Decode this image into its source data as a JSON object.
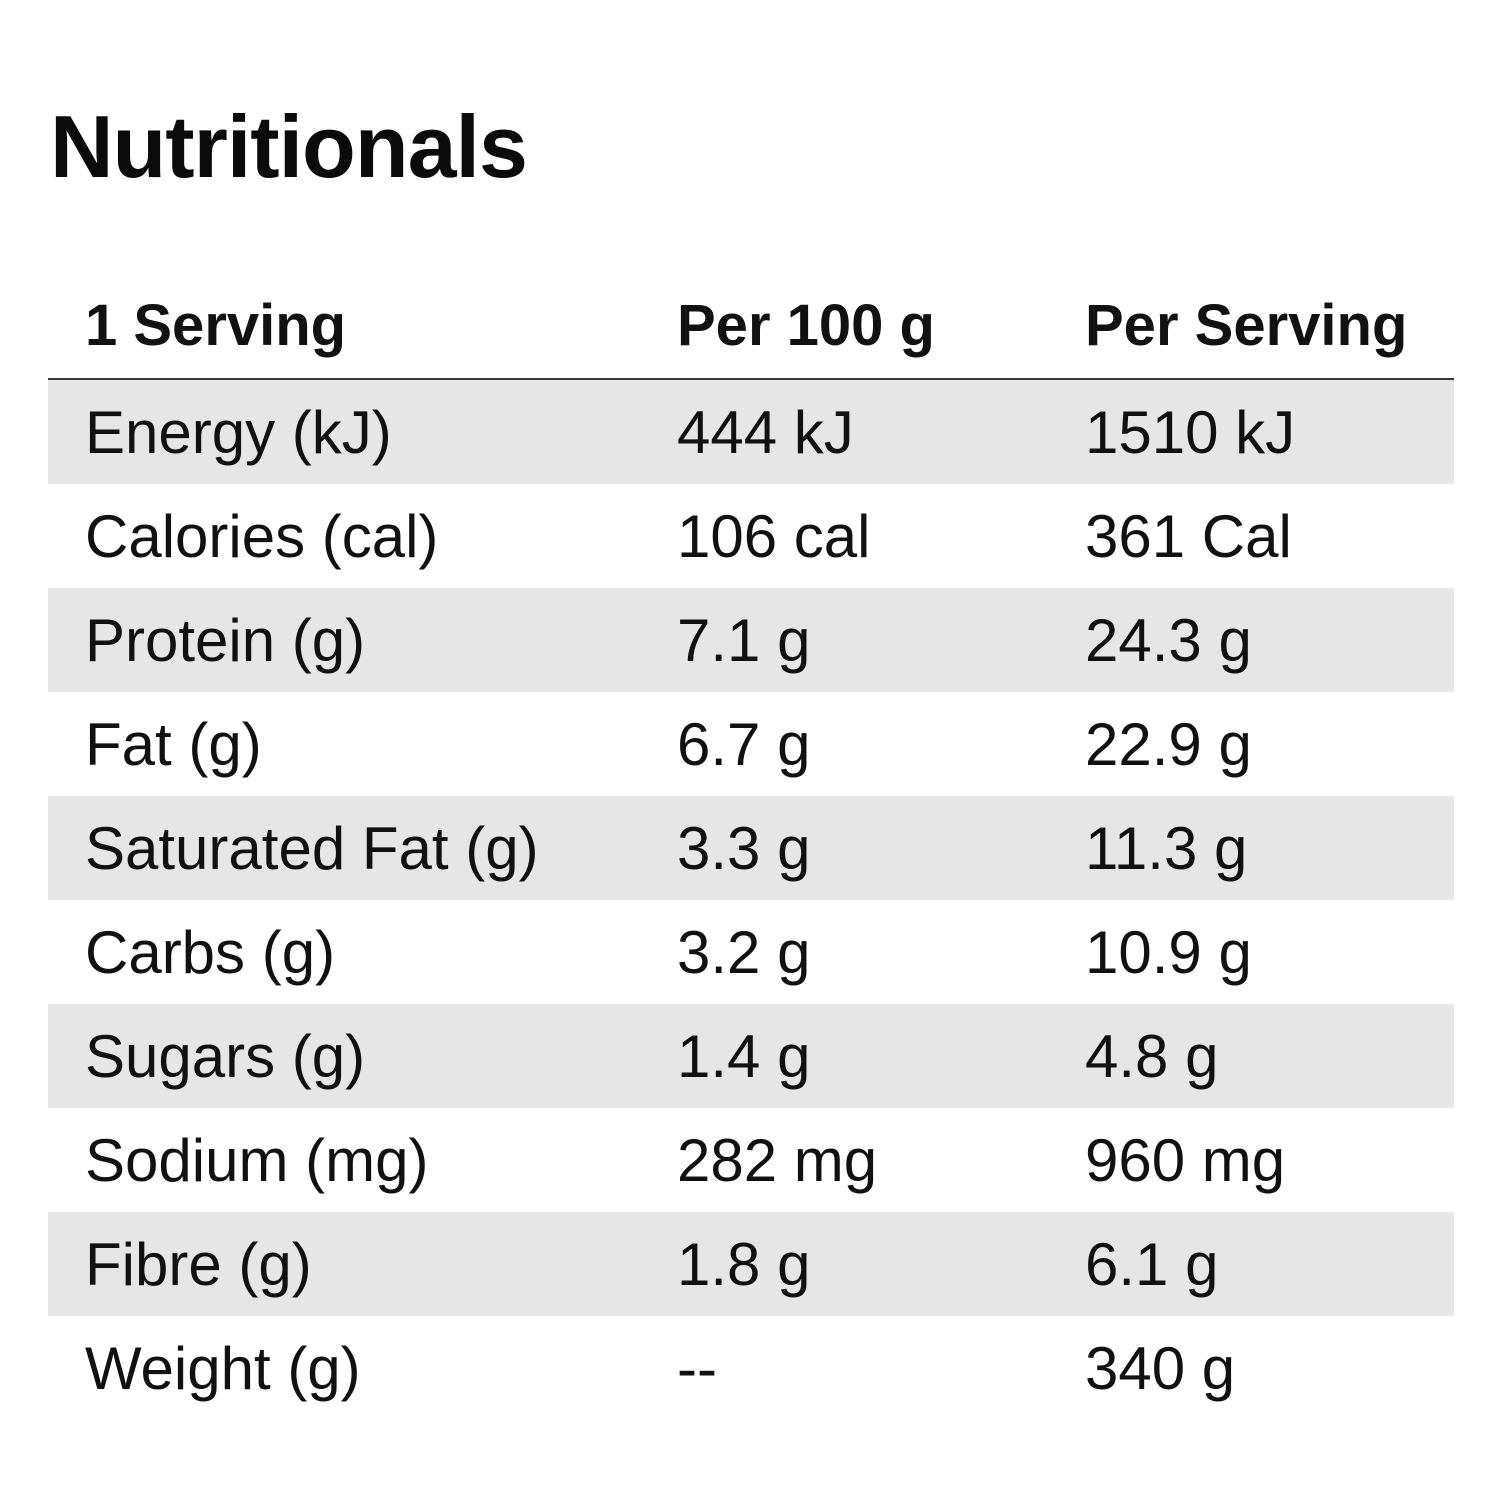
{
  "title": "Nutritionals",
  "table": {
    "headers": [
      "1 Serving",
      "Per 100 g",
      "Per Serving"
    ],
    "rows": [
      {
        "label": "Energy (kJ)",
        "per100": "444 kJ",
        "perServing": "1510 kJ"
      },
      {
        "label": "Calories (cal)",
        "per100": "106 cal",
        "perServing": "361 Cal"
      },
      {
        "label": "Protein (g)",
        "per100": "7.1 g",
        "perServing": "24.3 g"
      },
      {
        "label": "Fat (g)",
        "per100": "6.7 g",
        "perServing": "22.9 g"
      },
      {
        "label": "Saturated Fat (g)",
        "per100": "3.3 g",
        "perServing": "11.3 g"
      },
      {
        "label": "Carbs (g)",
        "per100": "3.2 g",
        "perServing": "10.9 g"
      },
      {
        "label": "Sugars (g)",
        "per100": "1.4 g",
        "perServing": "4.8 g"
      },
      {
        "label": "Sodium (mg)",
        "per100": "282 mg",
        "perServing": "960 mg"
      },
      {
        "label": "Fibre (g)",
        "per100": "1.8 g",
        "perServing": "6.1 g"
      },
      {
        "label": "Weight (g)",
        "per100": "--",
        "perServing": "340 g"
      }
    ]
  },
  "colors": {
    "stripe": "#e6e6e6",
    "text": "#111111",
    "header_rule": "#3a3a3a"
  }
}
